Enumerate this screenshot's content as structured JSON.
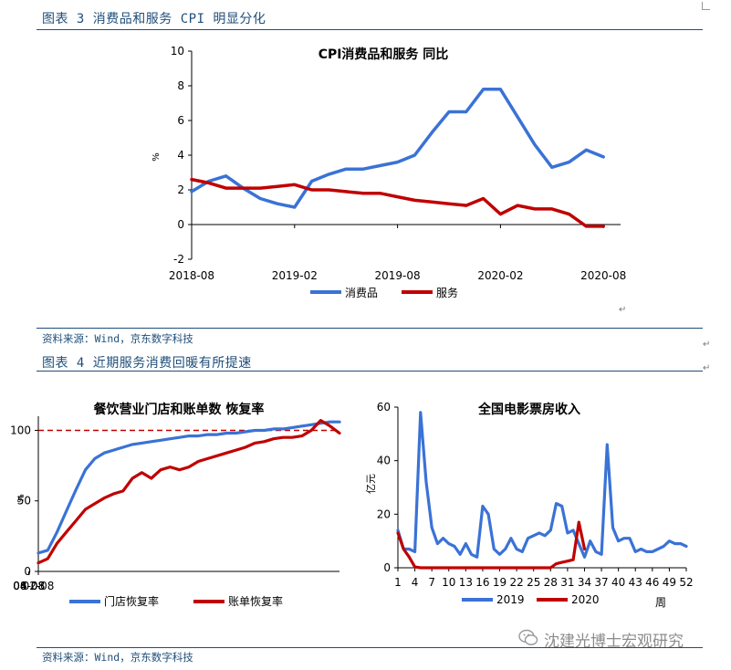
{
  "fig3": {
    "title": "图表 3 消费品和服务 CPI 明显分化",
    "source": "资料来源：Wind，京东数字科技",
    "chart_data": {
      "type": "line",
      "title": "CPI消费品和服务 同比",
      "ylabel": "%",
      "ylim": [
        -2,
        10
      ],
      "yticks": [
        -2,
        0,
        2,
        4,
        6,
        8,
        10
      ],
      "xlim": [
        "2018-08",
        "2020-09"
      ],
      "xticks": [
        "2018-08",
        "2019-02",
        "2019-08",
        "2020-02",
        "2020-08"
      ],
      "legend_position": "bottom",
      "x": [
        "2018-08",
        "2018-09",
        "2018-10",
        "2018-11",
        "2018-12",
        "2019-01",
        "2019-02",
        "2019-03",
        "2019-04",
        "2019-05",
        "2019-06",
        "2019-07",
        "2019-08",
        "2019-09",
        "2019-10",
        "2019-11",
        "2019-12",
        "2020-01",
        "2020-02",
        "2020-03",
        "2020-04",
        "2020-05",
        "2020-06",
        "2020-07",
        "2020-08",
        "2020-09"
      ],
      "series": [
        {
          "name": "消费品",
          "color": "#3a72d6",
          "values": [
            1.9,
            2.5,
            2.8,
            2.1,
            1.5,
            1.2,
            1.0,
            2.5,
            2.9,
            3.2,
            3.2,
            3.4,
            3.6,
            4.0,
            5.3,
            6.5,
            6.5,
            7.8,
            7.8,
            6.2,
            4.6,
            3.3,
            3.6,
            4.3,
            3.9,
            null
          ]
        },
        {
          "name": "服务",
          "color": "#c00000",
          "values": [
            2.6,
            2.4,
            2.1,
            2.1,
            2.1,
            2.2,
            2.3,
            2.0,
            2.0,
            1.9,
            1.8,
            1.8,
            1.6,
            1.4,
            1.3,
            1.2,
            1.1,
            1.5,
            0.6,
            1.1,
            0.9,
            0.9,
            0.6,
            -0.1,
            -0.1,
            null
          ]
        }
      ]
    }
  },
  "fig4": {
    "title": "图表 4 近期服务消费回暖有所提速",
    "source": "资料来源：Wind，京东数字科技",
    "left": {
      "chart_data": {
        "type": "line",
        "title": "餐饮营业门店和账单数 恢复率",
        "ylabel": "%",
        "ylim": [
          0,
          110
        ],
        "yticks": [
          0,
          50,
          100
        ],
        "reference_line": 100,
        "reference_color": "#c00000",
        "xlim": [
          "02-08",
          "09-15"
        ],
        "xticks": [
          "02-08",
          "04-08",
          "06-08",
          "08-08"
        ],
        "legend_position": "bottom",
        "x": [
          "02-08",
          "02-15",
          "02-22",
          "03-01",
          "03-08",
          "03-15",
          "03-22",
          "03-29",
          "04-05",
          "04-12",
          "04-19",
          "04-26",
          "05-03",
          "05-10",
          "05-17",
          "05-24",
          "05-31",
          "06-07",
          "06-14",
          "06-21",
          "06-28",
          "07-05",
          "07-12",
          "07-19",
          "07-26",
          "08-02",
          "08-09",
          "08-16",
          "08-23",
          "08-30",
          "09-06",
          "09-10",
          "09-14"
        ],
        "series": [
          {
            "name": "门店恢复率",
            "color": "#3a72d6",
            "values": [
              13,
              15,
              28,
              43,
              58,
              72,
              80,
              84,
              86,
              88,
              90,
              91,
              92,
              93,
              94,
              95,
              96,
              96,
              97,
              97,
              98,
              98,
              99,
              100,
              100,
              101,
              101,
              102,
              103,
              104,
              105,
              106,
              106
            ]
          },
          {
            "name": "账单恢复率",
            "color": "#c00000",
            "values": [
              6,
              9,
              20,
              28,
              36,
              44,
              48,
              52,
              55,
              57,
              66,
              70,
              66,
              72,
              74,
              72,
              74,
              78,
              80,
              82,
              84,
              86,
              88,
              91,
              92,
              94,
              95,
              95,
              96,
              100,
              107,
              103,
              98
            ]
          }
        ]
      }
    },
    "right": {
      "chart_data": {
        "type": "line",
        "title": "全国电影票房收入",
        "ylabel": "亿元",
        "xlabel": "周",
        "ylim": [
          0,
          60
        ],
        "yticks": [
          0,
          20,
          40,
          60
        ],
        "xticks": [
          1,
          4,
          7,
          10,
          13,
          16,
          19,
          22,
          25,
          28,
          31,
          34,
          37,
          40,
          43,
          46,
          49,
          52
        ],
        "legend_position": "bottom",
        "x": [
          1,
          2,
          3,
          4,
          5,
          6,
          7,
          8,
          9,
          10,
          11,
          12,
          13,
          14,
          15,
          16,
          17,
          18,
          19,
          20,
          21,
          22,
          23,
          24,
          25,
          26,
          27,
          28,
          29,
          30,
          31,
          32,
          33,
          34,
          35,
          36,
          37,
          38,
          39,
          40,
          41,
          42,
          43,
          44,
          45,
          46,
          47,
          48,
          49,
          50,
          51,
          52
        ],
        "series": [
          {
            "name": "2019",
            "color": "#3a72d6",
            "values": [
              14,
              7,
              7,
              6,
              58,
              32,
              15,
              9,
              11,
              9,
              8,
              5,
              9,
              5,
              4,
              23,
              20,
              7,
              5,
              7,
              11,
              7,
              6,
              11,
              12,
              13,
              12,
              14,
              24,
              23,
              13,
              14,
              9,
              4,
              10,
              6,
              5,
              46,
              15,
              10,
              11,
              11,
              6,
              7,
              6,
              6,
              7,
              8,
              10,
              9,
              9,
              8
            ]
          },
          {
            "name": "2020",
            "color": "#c00000",
            "values": [
              13,
              7,
              4,
              0.3,
              0,
              0,
              0,
              0,
              0,
              0,
              0,
              0,
              0,
              0,
              0,
              0,
              0,
              0,
              0,
              0,
              0,
              0,
              0,
              0,
              0,
              0,
              0,
              0,
              1.5,
              2,
              2.5,
              3,
              17,
              7,
              null,
              null,
              null,
              null,
              null,
              null,
              null,
              null,
              null,
              null,
              null,
              null,
              null,
              null,
              null,
              null,
              null,
              null
            ]
          }
        ]
      }
    }
  },
  "watermark": "沈建光博士宏观研究"
}
